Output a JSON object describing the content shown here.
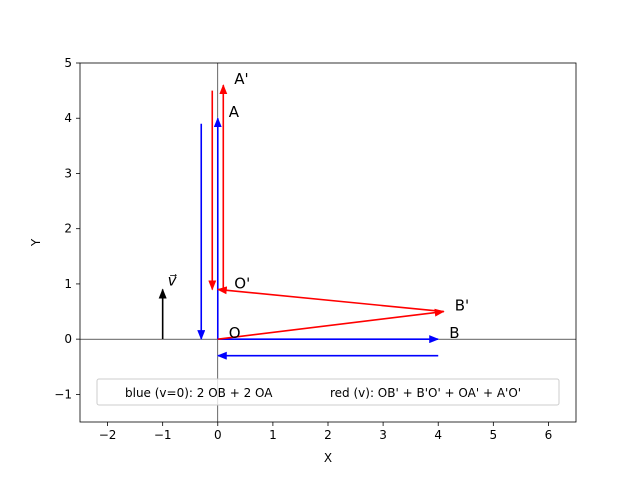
{
  "chart_data": {
    "type": "vector-plot",
    "xlabel": "X",
    "ylabel": "Y",
    "xlim": [
      -2.5,
      6.5
    ],
    "ylim": [
      -1.5,
      5
    ],
    "xticks": [
      -2,
      -1,
      0,
      1,
      2,
      3,
      4,
      5,
      6
    ],
    "yticks": [
      -1,
      0,
      1,
      2,
      3,
      4,
      5
    ],
    "grid": false,
    "zero_lines": true,
    "colors": {
      "blue": "#0000ff",
      "red": "#ff0000",
      "black": "#000000"
    },
    "arrows": [
      {
        "series": "blue",
        "from": [
          0,
          0
        ],
        "to": [
          4,
          0
        ]
      },
      {
        "series": "blue",
        "from": [
          4,
          -0.3
        ],
        "to": [
          0,
          -0.3
        ]
      },
      {
        "series": "blue",
        "from": [
          0,
          0
        ],
        "to": [
          0,
          4
        ]
      },
      {
        "series": "blue",
        "from": [
          -0.3,
          3.9
        ],
        "to": [
          -0.3,
          0
        ]
      },
      {
        "series": "red",
        "from": [
          0,
          0
        ],
        "to": [
          4.1,
          0.5
        ]
      },
      {
        "series": "red",
        "from": [
          4.1,
          0.5
        ],
        "to": [
          0,
          0.9
        ]
      },
      {
        "series": "red",
        "from": [
          0.1,
          0.9
        ],
        "to": [
          0.1,
          4.6
        ]
      },
      {
        "series": "red",
        "from": [
          -0.1,
          4.5
        ],
        "to": [
          -0.1,
          0.9
        ]
      },
      {
        "series": "black",
        "from": [
          -1,
          0
        ],
        "to": [
          -1,
          0.9
        ]
      }
    ],
    "points": [
      {
        "label": "O",
        "x": 0,
        "y": 0
      },
      {
        "label": "A",
        "x": 0,
        "y": 4
      },
      {
        "label": "B",
        "x": 4,
        "y": 0
      },
      {
        "label": "O'",
        "x": 0.1,
        "y": 0.9
      },
      {
        "label": "A'",
        "x": 0.1,
        "y": 4.6
      },
      {
        "label": "B'",
        "x": 4.1,
        "y": 0.5
      }
    ],
    "velocity_label": "v⃗",
    "legend_location": "lower center",
    "legend": [
      {
        "text": "blue (v=0): 2 OB + 2 OA"
      },
      {
        "text": "red (v): OB' + B'O' + OA' + A'O'"
      }
    ]
  }
}
